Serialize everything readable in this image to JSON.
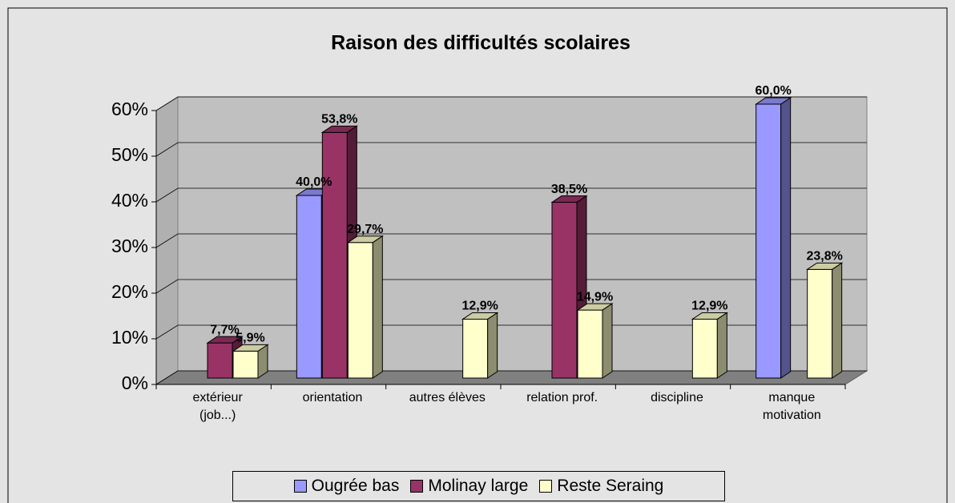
{
  "chart_data": {
    "type": "bar3d",
    "title": "Raison des difficultés scolaires",
    "categories": [
      "extérieur (job...)",
      "orientation",
      "autres élèves",
      "relation prof.",
      "discipline",
      "manque motivation"
    ],
    "series": [
      {
        "name": "Ougrée bas",
        "color": "#9999ff",
        "values": [
          null,
          40.0,
          null,
          null,
          null,
          60.0
        ],
        "value_labels": [
          null,
          "40,0%",
          null,
          null,
          null,
          "60,0%"
        ]
      },
      {
        "name": "Molinay large",
        "color": "#993366",
        "values": [
          7.7,
          53.8,
          null,
          38.5,
          null,
          null
        ],
        "value_labels": [
          "7,7%",
          "53,8%",
          null,
          "38,5%",
          null,
          null
        ]
      },
      {
        "name": "Reste Seraing",
        "color": "#ffffcc",
        "values": [
          5.9,
          29.7,
          12.9,
          14.9,
          12.9,
          23.8
        ],
        "value_labels": [
          "5,9%",
          "29,7%",
          "12,9%",
          "14,9%",
          "12,9%",
          "23,8%"
        ]
      }
    ],
    "ylim": [
      0,
      60
    ],
    "yticks": [
      {
        "value": 0,
        "label": "0%"
      },
      {
        "value": 10,
        "label": "10%"
      },
      {
        "value": 20,
        "label": "20%"
      },
      {
        "value": 30,
        "label": "30%"
      },
      {
        "value": 40,
        "label": "40%"
      },
      {
        "value": 50,
        "label": "50%"
      },
      {
        "value": 60,
        "label": "60%"
      }
    ],
    "grid": true,
    "legend": "bottom"
  }
}
